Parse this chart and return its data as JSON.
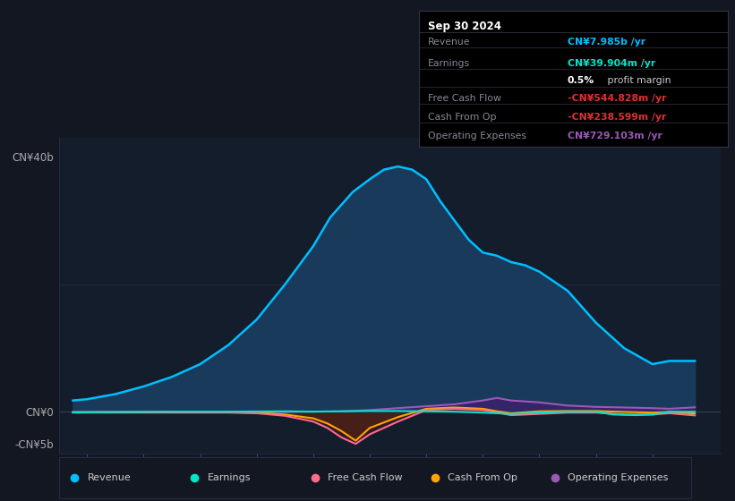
{
  "bg_color": "#131722",
  "plot_bg_color": "#141d2b",
  "revenue_color": "#00bfff",
  "earnings_color": "#00e5cc",
  "fcf_color": "#ff6b8a",
  "cashop_color": "#ffa500",
  "opex_color": "#9b59b6",
  "revenue_fill": "#1a3a5c",
  "opex_fill": "#3d1f6e",
  "cashop_fill": "#5a3000",
  "fcf_fill": "#4a1525",
  "earnings_fill": "#003838",
  "info_title": "Sep 30 2024",
  "info_rows": [
    {
      "label": "Revenue",
      "value": "CN¥7.985b /yr",
      "value_color": "#00bfff",
      "bold_part": "CN¥7.985b"
    },
    {
      "label": "Earnings",
      "value": "CN¥39.904m /yr",
      "value_color": "#00e5cc",
      "bold_part": "CN¥39.904m"
    },
    {
      "label": "",
      "value": "0.5% profit margin",
      "value_color": "#cccccc",
      "bold_part": "0.5%"
    },
    {
      "label": "Free Cash Flow",
      "value": "-CN¥544.828m /yr",
      "value_color": "#e03030",
      "bold_part": "-CN¥544.828m"
    },
    {
      "label": "Cash From Op",
      "value": "-CN¥238.599m /yr",
      "value_color": "#e03030",
      "bold_part": "-CN¥238.599m"
    },
    {
      "label": "Operating Expenses",
      "value": "CN¥729.103m /yr",
      "value_color": "#9b59b6",
      "bold_part": "CN¥729.103m"
    }
  ],
  "legend_items": [
    {
      "label": "Revenue",
      "color": "#00bfff"
    },
    {
      "label": "Earnings",
      "color": "#00e5cc"
    },
    {
      "label": "Free Cash Flow",
      "color": "#ff6b8a"
    },
    {
      "label": "Cash From Op",
      "color": "#ffa500"
    },
    {
      "label": "Operating Expenses",
      "color": "#9b59b6"
    }
  ],
  "revenue_x": [
    2013.75,
    2014.0,
    2014.5,
    2015.0,
    2015.5,
    2016.0,
    2016.5,
    2017.0,
    2017.5,
    2018.0,
    2018.3,
    2018.7,
    2019.0,
    2019.25,
    2019.5,
    2019.75,
    2020.0,
    2020.25,
    2020.5,
    2020.75,
    2021.0,
    2021.25,
    2021.5,
    2021.75,
    2022.0,
    2022.5,
    2023.0,
    2023.5,
    2024.0,
    2024.3,
    2024.75
  ],
  "revenue_y": [
    1.8,
    2.0,
    2.8,
    4.0,
    5.5,
    7.5,
    10.5,
    14.5,
    20.0,
    26.0,
    30.5,
    34.5,
    36.5,
    38.0,
    38.5,
    38.0,
    36.5,
    33.0,
    30.0,
    27.0,
    25.0,
    24.5,
    23.5,
    23.0,
    22.0,
    19.0,
    14.0,
    10.0,
    7.5,
    8.0,
    8.0
  ],
  "earnings_x": [
    2013.75,
    2014.5,
    2015.5,
    2016.5,
    2017.5,
    2018.0,
    2018.5,
    2019.0,
    2019.5,
    2020.0,
    2020.5,
    2021.0,
    2021.5,
    2022.0,
    2022.5,
    2023.0,
    2023.3,
    2023.7,
    2024.0,
    2024.3,
    2024.75
  ],
  "earnings_y": [
    -0.05,
    0.0,
    0.05,
    0.05,
    0.1,
    0.05,
    0.1,
    0.15,
    0.15,
    0.1,
    0.05,
    -0.1,
    -0.3,
    -0.1,
    0.05,
    0.05,
    -0.4,
    -0.5,
    -0.4,
    0.05,
    0.04
  ],
  "fcf_x": [
    2013.75,
    2014.5,
    2015.5,
    2016.5,
    2017.0,
    2017.5,
    2018.0,
    2018.25,
    2018.5,
    2018.75,
    2019.0,
    2019.5,
    2020.0,
    2020.5,
    2021.0,
    2021.25,
    2021.5,
    2022.0,
    2022.5,
    2023.0,
    2023.5,
    2024.0,
    2024.3,
    2024.75
  ],
  "fcf_y": [
    -0.1,
    -0.1,
    -0.1,
    -0.1,
    -0.2,
    -0.6,
    -1.5,
    -2.5,
    -4.0,
    -5.0,
    -3.5,
    -1.5,
    0.3,
    0.5,
    0.3,
    -0.1,
    -0.5,
    -0.3,
    -0.1,
    -0.1,
    -0.4,
    -0.4,
    -0.2,
    -0.54
  ],
  "cashop_x": [
    2013.75,
    2014.5,
    2015.5,
    2016.5,
    2017.0,
    2017.5,
    2018.0,
    2018.25,
    2018.5,
    2018.75,
    2019.0,
    2019.5,
    2020.0,
    2020.5,
    2021.0,
    2021.25,
    2021.5,
    2022.0,
    2022.5,
    2023.0,
    2023.5,
    2024.0,
    2024.3,
    2024.75
  ],
  "cashop_y": [
    -0.05,
    -0.05,
    -0.05,
    -0.05,
    -0.1,
    -0.4,
    -1.0,
    -1.8,
    -3.0,
    -4.5,
    -2.5,
    -0.8,
    0.5,
    0.7,
    0.5,
    0.1,
    -0.2,
    0.1,
    0.15,
    0.15,
    0.0,
    -0.1,
    0.0,
    -0.24
  ],
  "opex_x": [
    2013.75,
    2014.5,
    2015.5,
    2016.5,
    2017.5,
    2018.0,
    2018.5,
    2019.0,
    2019.5,
    2020.0,
    2020.5,
    2021.0,
    2021.25,
    2021.5,
    2022.0,
    2022.5,
    2023.0,
    2023.5,
    2024.0,
    2024.3,
    2024.75
  ],
  "opex_y": [
    0.0,
    0.0,
    0.0,
    0.0,
    0.0,
    0.05,
    0.1,
    0.3,
    0.6,
    0.9,
    1.2,
    1.8,
    2.2,
    1.8,
    1.5,
    1.0,
    0.8,
    0.7,
    0.6,
    0.5,
    0.73
  ],
  "xlim": [
    2013.5,
    2025.2
  ],
  "ylim_b": -6.5,
  "ylim_t": 43.0
}
